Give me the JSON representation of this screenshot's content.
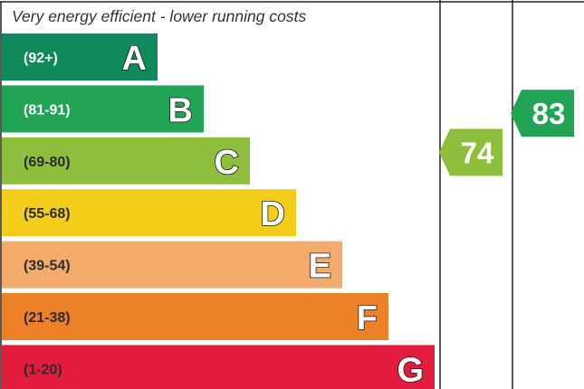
{
  "chart_data": {
    "type": "bar",
    "header": "Very energy efficient - lower running costs",
    "bands": [
      {
        "letter": "A",
        "range": "(92+)",
        "color": "#0f8a5c",
        "range_color": "#ffffff"
      },
      {
        "letter": "B",
        "range": "(81-91)",
        "color": "#22a455",
        "range_color": "#ffffff"
      },
      {
        "letter": "C",
        "range": "(69-80)",
        "color": "#8dbf3c",
        "range_color": "#2c2c2c"
      },
      {
        "letter": "D",
        "range": "(55-68)",
        "color": "#f4cd1a",
        "range_color": "#2c2c2c"
      },
      {
        "letter": "E",
        "range": "(39-54)",
        "color": "#f3ab6b",
        "range_color": "#2c2c2c"
      },
      {
        "letter": "F",
        "range": "(21-38)",
        "color": "#ec8127",
        "range_color": "#2c2c2c"
      },
      {
        "letter": "G",
        "range": "(1-20)",
        "color": "#e31c3d",
        "range_color": "#2c2c2c"
      }
    ],
    "ratings": [
      {
        "column": "current",
        "value": 74,
        "label": "74",
        "band": "C",
        "color": "#8dbf3c"
      },
      {
        "column": "potential",
        "value": 83,
        "label": "83",
        "band": "B",
        "color": "#22a455"
      }
    ]
  }
}
